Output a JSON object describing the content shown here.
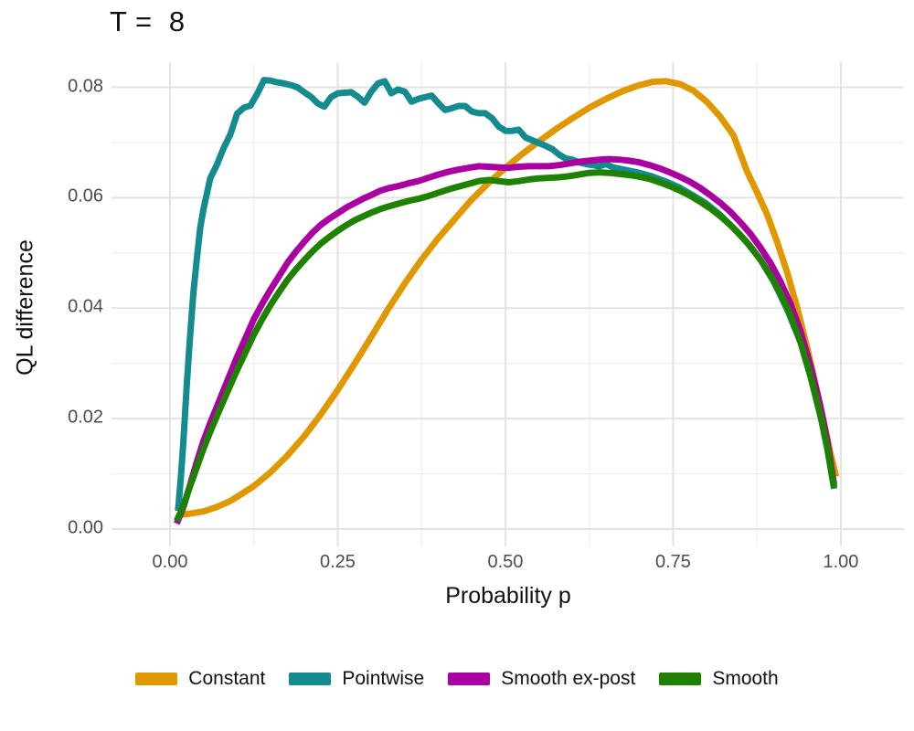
{
  "title": "T =  8",
  "colors": {
    "background": "#ffffff",
    "grid_major": "#e3e3e3",
    "grid_minor": "#ededed",
    "tick_text": "#4d4d4d",
    "title_text": "#111111",
    "constant": "#e09800",
    "pointwise": "#148b8e",
    "smooth_ex_post": "#aa00a2",
    "smooth": "#1e8200"
  },
  "legend": {
    "position": "bottom",
    "items": [
      {
        "label": "Constant",
        "color": "#e09800"
      },
      {
        "label": "Pointwise",
        "color": "#148b8e"
      },
      {
        "label": "Smooth ex-post",
        "color": "#aa00a2"
      },
      {
        "label": "Smooth",
        "color": "#1e8200"
      }
    ]
  },
  "chart_data": {
    "type": "line",
    "title": "T =  8",
    "xlabel": "Probability p",
    "ylabel": "QL difference",
    "grid": true,
    "legend_position": "bottom",
    "xlim": [
      -0.0872,
      1.0941
    ],
    "ylim": [
      -0.00314,
      0.08455
    ],
    "x_ticks": [
      0,
      0.25,
      0.5,
      0.75,
      1.0
    ],
    "x_tick_labels": [
      "0.00",
      "0.25",
      "0.50",
      "0.75",
      "1.00"
    ],
    "x_minor_ticks": [
      0.125,
      0.375,
      0.625,
      0.875
    ],
    "y_ticks": [
      0,
      0.02,
      0.04,
      0.06,
      0.08
    ],
    "y_tick_labels": [
      "0.00",
      "0.02",
      "0.04",
      "0.06",
      "0.08"
    ],
    "y_minor_ticks": [
      0.01,
      0.03,
      0.05,
      0.07
    ],
    "line_width": 7,
    "series": [
      {
        "name": "Constant",
        "color": "#e09800",
        "points": [
          [
            0.015,
            0.0026
          ],
          [
            0.03,
            0.0028
          ],
          [
            0.05,
            0.0032
          ],
          [
            0.07,
            0.004
          ],
          [
            0.09,
            0.0051
          ],
          [
            0.11,
            0.0066
          ],
          [
            0.125,
            0.0078
          ],
          [
            0.15,
            0.0103
          ],
          [
            0.175,
            0.0133
          ],
          [
            0.2,
            0.0168
          ],
          [
            0.225,
            0.0208
          ],
          [
            0.25,
            0.0252
          ],
          [
            0.275,
            0.0299
          ],
          [
            0.3,
            0.0348
          ],
          [
            0.325,
            0.0398
          ],
          [
            0.35,
            0.0445
          ],
          [
            0.375,
            0.0488
          ],
          [
            0.4,
            0.0527
          ],
          [
            0.425,
            0.0562
          ],
          [
            0.45,
            0.0597
          ],
          [
            0.475,
            0.0627
          ],
          [
            0.5,
            0.0654
          ],
          [
            0.525,
            0.0679
          ],
          [
            0.55,
            0.0702
          ],
          [
            0.575,
            0.0724
          ],
          [
            0.6,
            0.0744
          ],
          [
            0.625,
            0.0763
          ],
          [
            0.65,
            0.0779
          ],
          [
            0.675,
            0.0793
          ],
          [
            0.7,
            0.0804
          ],
          [
            0.72,
            0.081
          ],
          [
            0.74,
            0.0811
          ],
          [
            0.76,
            0.0806
          ],
          [
            0.78,
            0.0794
          ],
          [
            0.8,
            0.0774
          ],
          [
            0.82,
            0.0747
          ],
          [
            0.84,
            0.0713
          ],
          [
            0.86,
            0.0648
          ],
          [
            0.875,
            0.061
          ],
          [
            0.89,
            0.057
          ],
          [
            0.905,
            0.052
          ],
          [
            0.92,
            0.0465
          ],
          [
            0.935,
            0.0401
          ],
          [
            0.95,
            0.0328
          ],
          [
            0.965,
            0.0248
          ],
          [
            0.975,
            0.0192
          ],
          [
            0.985,
            0.0135
          ],
          [
            0.993,
            0.0095
          ]
        ]
      },
      {
        "name": "Pointwise",
        "color": "#148b8e",
        "points": [
          [
            0.012,
            0.0033
          ],
          [
            0.016,
            0.009
          ],
          [
            0.02,
            0.016
          ],
          [
            0.025,
            0.026
          ],
          [
            0.03,
            0.035
          ],
          [
            0.035,
            0.043
          ],
          [
            0.04,
            0.049
          ],
          [
            0.045,
            0.0545
          ],
          [
            0.05,
            0.058
          ],
          [
            0.06,
            0.0635
          ],
          [
            0.07,
            0.066
          ],
          [
            0.08,
            0.069
          ],
          [
            0.09,
            0.0715
          ],
          [
            0.1,
            0.0752
          ],
          [
            0.11,
            0.0763
          ],
          [
            0.12,
            0.0767
          ],
          [
            0.13,
            0.0788
          ],
          [
            0.14,
            0.0813
          ],
          [
            0.15,
            0.0812
          ],
          [
            0.16,
            0.0809
          ],
          [
            0.17,
            0.0807
          ],
          [
            0.18,
            0.0804
          ],
          [
            0.19,
            0.08
          ],
          [
            0.2,
            0.0791
          ],
          [
            0.21,
            0.0783
          ],
          [
            0.22,
            0.0771
          ],
          [
            0.23,
            0.0765
          ],
          [
            0.24,
            0.0782
          ],
          [
            0.25,
            0.0789
          ],
          [
            0.26,
            0.079
          ],
          [
            0.27,
            0.0791
          ],
          [
            0.28,
            0.0783
          ],
          [
            0.29,
            0.0772
          ],
          [
            0.3,
            0.0792
          ],
          [
            0.31,
            0.0807
          ],
          [
            0.32,
            0.0811
          ],
          [
            0.33,
            0.0789
          ],
          [
            0.34,
            0.0796
          ],
          [
            0.35,
            0.0792
          ],
          [
            0.36,
            0.0774
          ],
          [
            0.37,
            0.0779
          ],
          [
            0.38,
            0.0782
          ],
          [
            0.39,
            0.0785
          ],
          [
            0.4,
            0.0771
          ],
          [
            0.41,
            0.0759
          ],
          [
            0.42,
            0.0762
          ],
          [
            0.43,
            0.0766
          ],
          [
            0.44,
            0.0766
          ],
          [
            0.45,
            0.0756
          ],
          [
            0.46,
            0.0753
          ],
          [
            0.47,
            0.0753
          ],
          [
            0.48,
            0.0744
          ],
          [
            0.49,
            0.0729
          ],
          [
            0.5,
            0.0721
          ],
          [
            0.51,
            0.0721
          ],
          [
            0.52,
            0.0723
          ],
          [
            0.53,
            0.0709
          ],
          [
            0.54,
            0.0704
          ],
          [
            0.55,
            0.0699
          ],
          [
            0.56,
            0.0694
          ],
          [
            0.57,
            0.0688
          ],
          [
            0.58,
            0.0678
          ],
          [
            0.59,
            0.0671
          ],
          [
            0.6,
            0.0669
          ],
          [
            0.61,
            0.0664
          ],
          [
            0.62,
            0.0661
          ],
          [
            0.63,
            0.0659
          ],
          [
            0.64,
            0.0657
          ],
          [
            0.65,
            0.0661
          ],
          [
            0.66,
            0.0655
          ],
          [
            0.68,
            0.065
          ],
          [
            0.7,
            0.0645
          ],
          [
            0.72,
            0.0638
          ],
          [
            0.74,
            0.0629
          ],
          [
            0.76,
            0.0618
          ],
          [
            0.78,
            0.0604
          ],
          [
            0.8,
            0.0589
          ],
          [
            0.82,
            0.0569
          ],
          [
            0.84,
            0.0545
          ],
          [
            0.86,
            0.0519
          ],
          [
            0.88,
            0.0488
          ],
          [
            0.9,
            0.0448
          ],
          [
            0.92,
            0.0398
          ],
          [
            0.94,
            0.0338
          ],
          [
            0.955,
            0.0275
          ],
          [
            0.97,
            0.0203
          ],
          [
            0.98,
            0.0144
          ],
          [
            0.99,
            0.0073
          ]
        ]
      },
      {
        "name": "Smooth ex-post",
        "color": "#aa00a2",
        "points": [
          [
            0.01,
            0.001
          ],
          [
            0.02,
            0.004
          ],
          [
            0.03,
            0.008
          ],
          [
            0.04,
            0.0122
          ],
          [
            0.05,
            0.016
          ],
          [
            0.06,
            0.0192
          ],
          [
            0.07,
            0.0222
          ],
          [
            0.08,
            0.0252
          ],
          [
            0.09,
            0.0282
          ],
          [
            0.1,
            0.0312
          ],
          [
            0.1125,
            0.0346
          ],
          [
            0.125,
            0.038
          ],
          [
            0.1375,
            0.0408
          ],
          [
            0.15,
            0.0434
          ],
          [
            0.1625,
            0.0458
          ],
          [
            0.175,
            0.0482
          ],
          [
            0.1875,
            0.0502
          ],
          [
            0.2,
            0.052
          ],
          [
            0.2125,
            0.0537
          ],
          [
            0.225,
            0.0551
          ],
          [
            0.2375,
            0.0562
          ],
          [
            0.25,
            0.0572
          ],
          [
            0.2625,
            0.0582
          ],
          [
            0.275,
            0.059
          ],
          [
            0.2875,
            0.0598
          ],
          [
            0.3,
            0.0605
          ],
          [
            0.3125,
            0.0612
          ],
          [
            0.325,
            0.0617
          ],
          [
            0.34,
            0.0621
          ],
          [
            0.355,
            0.0626
          ],
          [
            0.37,
            0.063
          ],
          [
            0.385,
            0.0636
          ],
          [
            0.4,
            0.0642
          ],
          [
            0.415,
            0.0647
          ],
          [
            0.43,
            0.0651
          ],
          [
            0.445,
            0.0654
          ],
          [
            0.46,
            0.0657
          ],
          [
            0.475,
            0.0656
          ],
          [
            0.49,
            0.0655
          ],
          [
            0.505,
            0.0654
          ],
          [
            0.52,
            0.0656
          ],
          [
            0.535,
            0.0657
          ],
          [
            0.55,
            0.0657
          ],
          [
            0.565,
            0.0657
          ],
          [
            0.58,
            0.0659
          ],
          [
            0.595,
            0.0662
          ],
          [
            0.61,
            0.0665
          ],
          [
            0.625,
            0.0667
          ],
          [
            0.64,
            0.0669
          ],
          [
            0.655,
            0.067
          ],
          [
            0.67,
            0.0669
          ],
          [
            0.685,
            0.0667
          ],
          [
            0.7,
            0.0664
          ],
          [
            0.715,
            0.0659
          ],
          [
            0.73,
            0.0653
          ],
          [
            0.745,
            0.0646
          ],
          [
            0.76,
            0.0638
          ],
          [
            0.775,
            0.0629
          ],
          [
            0.79,
            0.0618
          ],
          [
            0.805,
            0.0605
          ],
          [
            0.82,
            0.0591
          ],
          [
            0.835,
            0.0575
          ],
          [
            0.85,
            0.0556
          ],
          [
            0.865,
            0.0535
          ],
          [
            0.88,
            0.051
          ],
          [
            0.895,
            0.0482
          ],
          [
            0.91,
            0.0448
          ],
          [
            0.925,
            0.0408
          ],
          [
            0.94,
            0.0358
          ],
          [
            0.955,
            0.0295
          ],
          [
            0.97,
            0.022
          ],
          [
            0.98,
            0.0158
          ],
          [
            0.99,
            0.008
          ]
        ]
      },
      {
        "name": "Smooth",
        "color": "#1e8200",
        "points": [
          [
            0.01,
            0.0015
          ],
          [
            0.02,
            0.0042
          ],
          [
            0.03,
            0.0078
          ],
          [
            0.04,
            0.0112
          ],
          [
            0.05,
            0.0146
          ],
          [
            0.06,
            0.0176
          ],
          [
            0.07,
            0.0205
          ],
          [
            0.08,
            0.0233
          ],
          [
            0.09,
            0.0261
          ],
          [
            0.1,
            0.0288
          ],
          [
            0.1125,
            0.032
          ],
          [
            0.125,
            0.0352
          ],
          [
            0.1375,
            0.038
          ],
          [
            0.15,
            0.0406
          ],
          [
            0.1625,
            0.0429
          ],
          [
            0.175,
            0.0451
          ],
          [
            0.1875,
            0.047
          ],
          [
            0.2,
            0.0487
          ],
          [
            0.2125,
            0.0503
          ],
          [
            0.225,
            0.0517
          ],
          [
            0.2375,
            0.0529
          ],
          [
            0.25,
            0.054
          ],
          [
            0.2625,
            0.055
          ],
          [
            0.275,
            0.0559
          ],
          [
            0.2875,
            0.0566
          ],
          [
            0.3,
            0.0573
          ],
          [
            0.3125,
            0.0579
          ],
          [
            0.325,
            0.0584
          ],
          [
            0.34,
            0.0589
          ],
          [
            0.355,
            0.0594
          ],
          [
            0.37,
            0.0598
          ],
          [
            0.385,
            0.0603
          ],
          [
            0.4,
            0.0609
          ],
          [
            0.415,
            0.0615
          ],
          [
            0.43,
            0.062
          ],
          [
            0.445,
            0.0625
          ],
          [
            0.46,
            0.063
          ],
          [
            0.475,
            0.0632
          ],
          [
            0.49,
            0.063
          ],
          [
            0.505,
            0.0628
          ],
          [
            0.52,
            0.063
          ],
          [
            0.535,
            0.0633
          ],
          [
            0.55,
            0.0635
          ],
          [
            0.565,
            0.0636
          ],
          [
            0.58,
            0.0637
          ],
          [
            0.595,
            0.0639
          ],
          [
            0.61,
            0.0642
          ],
          [
            0.625,
            0.0645
          ],
          [
            0.64,
            0.0646
          ],
          [
            0.655,
            0.0645
          ],
          [
            0.67,
            0.0643
          ],
          [
            0.685,
            0.0641
          ],
          [
            0.7,
            0.0638
          ],
          [
            0.715,
            0.0634
          ],
          [
            0.73,
            0.0628
          ],
          [
            0.745,
            0.0621
          ],
          [
            0.76,
            0.0613
          ],
          [
            0.775,
            0.0604
          ],
          [
            0.79,
            0.0593
          ],
          [
            0.805,
            0.0581
          ],
          [
            0.82,
            0.0567
          ],
          [
            0.835,
            0.0551
          ],
          [
            0.85,
            0.0533
          ],
          [
            0.865,
            0.0512
          ],
          [
            0.88,
            0.0488
          ],
          [
            0.895,
            0.046
          ],
          [
            0.91,
            0.0427
          ],
          [
            0.925,
            0.0387
          ],
          [
            0.94,
            0.0338
          ],
          [
            0.955,
            0.0277
          ],
          [
            0.97,
            0.0205
          ],
          [
            0.98,
            0.0146
          ],
          [
            0.99,
            0.0075
          ]
        ]
      }
    ]
  }
}
